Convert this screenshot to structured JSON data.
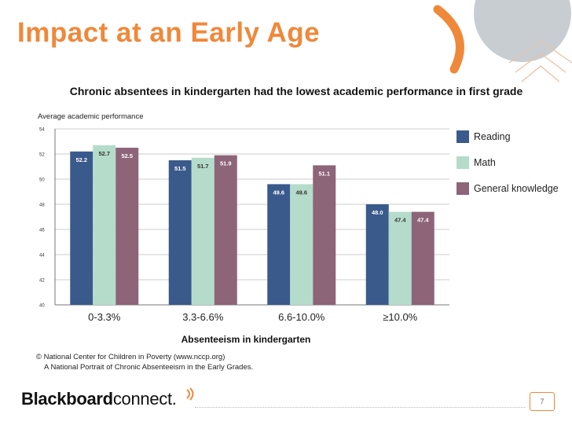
{
  "slide": {
    "title": "Impact at an Early Age",
    "page_number": "7",
    "brand_bold": "Blackboard",
    "brand_light": "connect."
  },
  "source": {
    "line1": "© National Center for Children in Poverty (www.nccp.org)",
    "line2": "A National Portrait of Chronic Absenteeism in the Early Grades."
  },
  "colors": {
    "accent": "#f0883a",
    "decor_circle": "#c8cdd2",
    "reading": "#3a5a8c",
    "math": "#b5dccb",
    "general": "#8e6479",
    "grid": "#bdbdbd"
  },
  "chart_data": {
    "type": "bar",
    "title": "Chronic absentees in kindergarten had the lowest academic performance in first grade",
    "xlabel": "Absenteeism in kindergarten",
    "ylabel": "Average academic performance",
    "ylim": [
      40,
      54
    ],
    "yticks": [
      40,
      42,
      44,
      46,
      48,
      50,
      52,
      54
    ],
    "grid": true,
    "legend_position": "right",
    "categories": [
      "0-3.3%",
      "3.3-6.6%",
      "6.6-10.0%",
      "≥10.0%"
    ],
    "series": [
      {
        "name": "Reading",
        "values": [
          52.2,
          51.5,
          49.6,
          48.0
        ]
      },
      {
        "name": "Math",
        "values": [
          52.7,
          51.7,
          49.6,
          47.4
        ]
      },
      {
        "name": "General knowledge",
        "values": [
          52.5,
          51.9,
          51.1,
          47.4
        ]
      }
    ],
    "data_labels": [
      [
        "52.2",
        "51.5",
        "49.6",
        "48.0"
      ],
      [
        "52.7",
        "51.7",
        "49.6",
        "47.4"
      ],
      [
        "52.5",
        "51.9",
        "51.1",
        "47.4"
      ]
    ]
  }
}
